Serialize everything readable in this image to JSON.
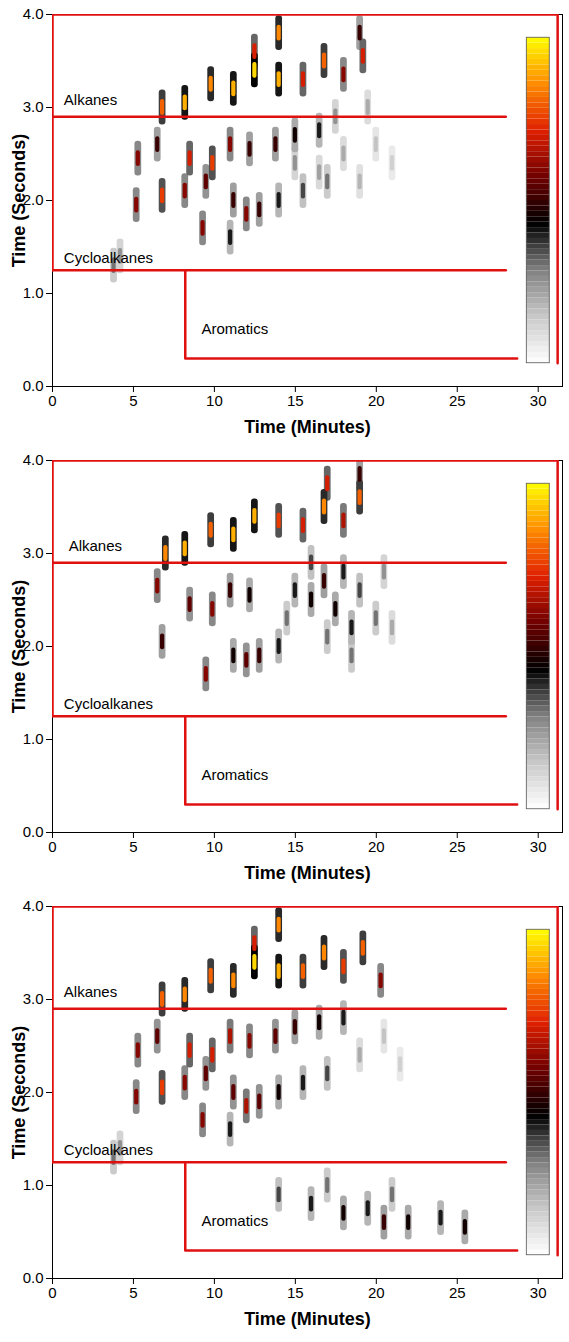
{
  "chart_data": [
    {
      "type": "heatmap",
      "xlabel": "Time (Minutes)",
      "ylabel": "Time (Seconds)",
      "xlim": [
        0,
        31.5
      ],
      "xticks": [
        0,
        5,
        10,
        15,
        20,
        25,
        30
      ],
      "ylim": [
        0,
        4
      ],
      "yticks": [
        0,
        1,
        2,
        3,
        4
      ],
      "colorbar": {
        "range": [
          0,
          1
        ],
        "colors": [
          "#ffffff",
          "#c8c8c8",
          "#808080",
          "#000000",
          "#700000",
          "#e02000",
          "#ff8c00",
          "#ffff00"
        ]
      },
      "boundaries": [
        {
          "x": [
            0,
            0,
            31.2,
            31.2
          ],
          "y": [
            1.25,
            4,
            4,
            0.25
          ],
          "color": "#e01010"
        },
        {
          "x": [
            0,
            28
          ],
          "y": [
            2.9,
            2.9
          ],
          "color": "#e01010"
        },
        {
          "x": [
            0,
            28
          ],
          "y": [
            1.25,
            1.25
          ],
          "color": "#e01010"
        },
        {
          "x": [
            8.2,
            8.2,
            28.7
          ],
          "y": [
            1.25,
            0.3,
            0.3
          ],
          "color": "#e01010"
        }
      ],
      "annotations": [
        {
          "text": "Alkanes",
          "x": 0.7,
          "y": 3.08
        },
        {
          "text": "Cycloalkanes",
          "x": 0.7,
          "y": 1.38
        },
        {
          "text": "Aromatics",
          "x": 9.2,
          "y": 0.62
        }
      ],
      "peaks": [
        [
          6.8,
          3.0,
          0.8
        ],
        [
          8.2,
          3.05,
          0.9
        ],
        [
          9.8,
          3.25,
          0.85
        ],
        [
          11.2,
          3.2,
          0.9
        ],
        [
          12.5,
          3.4,
          0.95
        ],
        [
          12.5,
          3.6,
          0.7
        ],
        [
          14.0,
          3.3,
          0.9
        ],
        [
          14.0,
          3.8,
          0.85
        ],
        [
          15.5,
          3.3,
          0.7
        ],
        [
          16.8,
          3.5,
          0.8
        ],
        [
          18.0,
          3.35,
          0.6
        ],
        [
          19.2,
          3.55,
          0.7
        ],
        [
          19.0,
          3.8,
          0.5
        ],
        [
          5.3,
          2.45,
          0.6
        ],
        [
          6.5,
          2.6,
          0.5
        ],
        [
          8.5,
          2.45,
          0.7
        ],
        [
          9.9,
          2.4,
          0.75
        ],
        [
          11.0,
          2.6,
          0.6
        ],
        [
          12.2,
          2.55,
          0.5
        ],
        [
          13.8,
          2.6,
          0.5
        ],
        [
          15.0,
          2.7,
          0.45
        ],
        [
          16.5,
          2.75,
          0.4
        ],
        [
          5.2,
          1.95,
          0.6
        ],
        [
          6.8,
          2.05,
          0.75
        ],
        [
          8.2,
          2.1,
          0.6
        ],
        [
          9.5,
          2.2,
          0.55
        ],
        [
          11.2,
          2.0,
          0.5
        ],
        [
          12.0,
          1.85,
          0.6
        ],
        [
          12.8,
          1.9,
          0.5
        ],
        [
          14.0,
          2.0,
          0.4
        ],
        [
          15.5,
          2.1,
          0.35
        ],
        [
          17.0,
          2.2,
          0.3
        ],
        [
          9.3,
          1.7,
          0.6
        ],
        [
          11.0,
          1.6,
          0.4
        ],
        [
          3.8,
          1.3,
          0.3
        ],
        [
          4.2,
          1.4,
          0.25
        ],
        [
          15.0,
          2.4,
          0.25
        ],
        [
          16.5,
          2.3,
          0.22
        ],
        [
          18.0,
          2.5,
          0.2
        ],
        [
          19.0,
          2.2,
          0.18
        ],
        [
          20.0,
          2.6,
          0.15
        ],
        [
          21.0,
          2.4,
          0.12
        ],
        [
          17.5,
          2.9,
          0.25
        ],
        [
          19.5,
          3.0,
          0.2
        ]
      ]
    },
    {
      "type": "heatmap",
      "xlabel": "Time (Minutes)",
      "ylabel": "Time (Seconds)",
      "xlim": [
        0,
        31.5
      ],
      "xticks": [
        0,
        5,
        10,
        15,
        20,
        25,
        30
      ],
      "ylim": [
        0,
        4
      ],
      "yticks": [
        0,
        1,
        2,
        3,
        4
      ],
      "colorbar": {
        "range": [
          0,
          1
        ],
        "colors": [
          "#ffffff",
          "#c8c8c8",
          "#808080",
          "#000000",
          "#700000",
          "#e02000",
          "#ff8c00",
          "#ffff00"
        ]
      },
      "boundaries": [
        {
          "x": [
            0,
            0,
            31.2,
            31.2
          ],
          "y": [
            1.25,
            4,
            4,
            0.25
          ],
          "color": "#e01010"
        },
        {
          "x": [
            0,
            28
          ],
          "y": [
            2.9,
            2.9
          ],
          "color": "#e01010"
        },
        {
          "x": [
            0,
            28
          ],
          "y": [
            1.25,
            1.25
          ],
          "color": "#e01010"
        },
        {
          "x": [
            8.2,
            8.2,
            28.7
          ],
          "y": [
            1.25,
            0.3,
            0.3
          ],
          "color": "#e01010"
        }
      ],
      "annotations": [
        {
          "text": "Alkanes",
          "x": 1.0,
          "y": 3.08
        },
        {
          "text": "Cycloalkanes",
          "x": 0.7,
          "y": 1.38
        },
        {
          "text": "Aromatics",
          "x": 9.2,
          "y": 0.62
        }
      ],
      "peaks": [
        [
          7.0,
          3.0,
          0.85
        ],
        [
          8.2,
          3.05,
          0.9
        ],
        [
          9.8,
          3.25,
          0.8
        ],
        [
          11.2,
          3.2,
          0.9
        ],
        [
          12.5,
          3.4,
          0.9
        ],
        [
          14.0,
          3.35,
          0.75
        ],
        [
          15.5,
          3.3,
          0.7
        ],
        [
          16.8,
          3.5,
          0.85
        ],
        [
          17.0,
          3.75,
          0.7
        ],
        [
          18.0,
          3.35,
          0.65
        ],
        [
          19.0,
          3.6,
          0.8
        ],
        [
          19.0,
          3.85,
          0.5
        ],
        [
          6.5,
          2.65,
          0.6
        ],
        [
          8.5,
          2.45,
          0.55
        ],
        [
          9.9,
          2.4,
          0.6
        ],
        [
          11.0,
          2.6,
          0.5
        ],
        [
          12.2,
          2.55,
          0.45
        ],
        [
          6.8,
          2.05,
          0.5
        ],
        [
          9.5,
          1.7,
          0.6
        ],
        [
          11.2,
          1.9,
          0.45
        ],
        [
          12.0,
          1.85,
          0.55
        ],
        [
          12.8,
          1.9,
          0.5
        ],
        [
          14.0,
          2.0,
          0.4
        ],
        [
          15.0,
          2.6,
          0.4
        ],
        [
          16.0,
          2.5,
          0.45
        ],
        [
          16.8,
          2.7,
          0.5
        ],
        [
          17.5,
          2.4,
          0.45
        ],
        [
          18.0,
          2.8,
          0.4
        ],
        [
          18.5,
          2.2,
          0.4
        ],
        [
          19.0,
          2.6,
          0.35
        ],
        [
          20.0,
          2.3,
          0.3
        ],
        [
          20.5,
          2.8,
          0.25
        ],
        [
          17.0,
          2.1,
          0.3
        ],
        [
          18.5,
          1.9,
          0.3
        ],
        [
          21.0,
          2.2,
          0.2
        ],
        [
          16.0,
          2.9,
          0.35
        ],
        [
          14.5,
          2.3,
          0.3
        ]
      ]
    },
    {
      "type": "heatmap",
      "xlabel": "Time (Minutes)",
      "ylabel": "Time (Seconds)",
      "xlim": [
        0,
        31.5
      ],
      "xticks": [
        0,
        5,
        10,
        15,
        20,
        25,
        30
      ],
      "ylim": [
        0,
        4
      ],
      "yticks": [
        0,
        1,
        2,
        3,
        4
      ],
      "colorbar": {
        "range": [
          0,
          1
        ],
        "colors": [
          "#ffffff",
          "#c8c8c8",
          "#808080",
          "#000000",
          "#700000",
          "#e02000",
          "#ff8c00",
          "#ffff00"
        ]
      },
      "boundaries": [
        {
          "x": [
            0,
            0,
            31.2,
            31.2
          ],
          "y": [
            1.25,
            4,
            4,
            0.25
          ],
          "color": "#e01010"
        },
        {
          "x": [
            0,
            28
          ],
          "y": [
            2.9,
            2.9
          ],
          "color": "#e01010"
        },
        {
          "x": [
            0,
            28
          ],
          "y": [
            1.25,
            1.25
          ],
          "color": "#e01010"
        },
        {
          "x": [
            8.2,
            8.2,
            28.7
          ],
          "y": [
            1.25,
            0.3,
            0.3
          ],
          "color": "#e01010"
        }
      ],
      "annotations": [
        {
          "text": "Alkanes",
          "x": 0.7,
          "y": 3.08
        },
        {
          "text": "Cycloalkanes",
          "x": 0.7,
          "y": 1.38
        },
        {
          "text": "Aromatics",
          "x": 9.2,
          "y": 0.62
        }
      ],
      "peaks": [
        [
          6.8,
          3.0,
          0.8
        ],
        [
          8.2,
          3.05,
          0.85
        ],
        [
          9.8,
          3.25,
          0.8
        ],
        [
          11.2,
          3.2,
          0.85
        ],
        [
          12.5,
          3.4,
          0.95
        ],
        [
          12.5,
          3.6,
          0.7
        ],
        [
          14.0,
          3.3,
          0.9
        ],
        [
          14.0,
          3.8,
          0.85
        ],
        [
          15.5,
          3.3,
          0.8
        ],
        [
          16.8,
          3.5,
          0.85
        ],
        [
          18.0,
          3.35,
          0.75
        ],
        [
          19.2,
          3.55,
          0.8
        ],
        [
          20.3,
          3.2,
          0.6
        ],
        [
          5.3,
          2.45,
          0.6
        ],
        [
          6.5,
          2.6,
          0.55
        ],
        [
          8.5,
          2.45,
          0.7
        ],
        [
          9.9,
          2.4,
          0.7
        ],
        [
          11.0,
          2.6,
          0.65
        ],
        [
          12.2,
          2.55,
          0.6
        ],
        [
          13.8,
          2.6,
          0.55
        ],
        [
          15.0,
          2.7,
          0.5
        ],
        [
          16.5,
          2.75,
          0.45
        ],
        [
          18.0,
          2.8,
          0.4
        ],
        [
          5.2,
          1.95,
          0.6
        ],
        [
          6.8,
          2.05,
          0.75
        ],
        [
          8.2,
          2.1,
          0.6
        ],
        [
          9.5,
          2.2,
          0.55
        ],
        [
          11.2,
          2.0,
          0.55
        ],
        [
          12.0,
          1.85,
          0.65
        ],
        [
          12.8,
          1.9,
          0.55
        ],
        [
          14.0,
          2.0,
          0.45
        ],
        [
          15.5,
          2.1,
          0.4
        ],
        [
          17.0,
          2.2,
          0.35
        ],
        [
          9.3,
          1.7,
          0.6
        ],
        [
          11.0,
          1.6,
          0.4
        ],
        [
          3.8,
          1.3,
          0.3
        ],
        [
          4.2,
          1.4,
          0.25
        ],
        [
          14.0,
          0.9,
          0.35
        ],
        [
          16.0,
          0.8,
          0.4
        ],
        [
          17.0,
          1.0,
          0.3
        ],
        [
          18.0,
          0.7,
          0.45
        ],
        [
          19.5,
          0.75,
          0.4
        ],
        [
          20.5,
          0.6,
          0.5
        ],
        [
          21.0,
          0.9,
          0.3
        ],
        [
          22.0,
          0.6,
          0.45
        ],
        [
          24.0,
          0.65,
          0.4
        ],
        [
          25.5,
          0.55,
          0.45
        ],
        [
          19.0,
          2.4,
          0.2
        ],
        [
          20.5,
          2.6,
          0.15
        ],
        [
          21.5,
          2.3,
          0.12
        ]
      ]
    }
  ]
}
